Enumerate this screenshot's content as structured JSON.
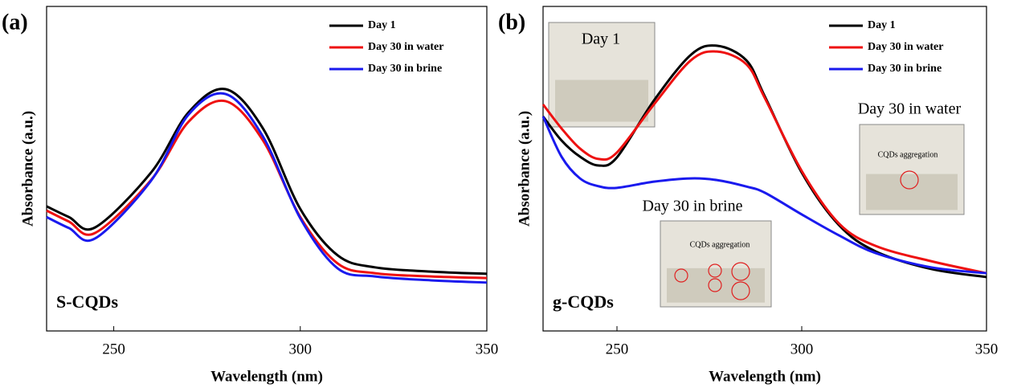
{
  "chart_data": [
    {
      "type": "line",
      "panel_label": "(a)",
      "sample": "S-CQDs",
      "xlabel": "Wavelength (nm)",
      "ylabel": "Absorbance (a.u.)",
      "xlim": [
        232,
        350
      ],
      "xticks": [
        250,
        300,
        350
      ],
      "ylim": [
        0,
        1
      ],
      "x": [
        232,
        238,
        245,
        260,
        270,
        280,
        290,
        300,
        310,
        320,
        335,
        350
      ],
      "series": [
        {
          "name": "Day 1",
          "color": "#000000",
          "values": [
            0.384,
            0.351,
            0.319,
            0.488,
            0.673,
            0.745,
            0.624,
            0.376,
            0.233,
            0.196,
            0.183,
            0.176
          ]
        },
        {
          "name": "Day 30 in water",
          "color": "#ee1111",
          "values": [
            0.371,
            0.337,
            0.302,
            0.465,
            0.644,
            0.708,
            0.587,
            0.351,
            0.208,
            0.178,
            0.168,
            0.163
          ]
        },
        {
          "name": "Day 30 in brine",
          "color": "#1a1aee",
          "values": [
            0.351,
            0.317,
            0.285,
            0.463,
            0.666,
            0.73,
            0.599,
            0.347,
            0.193,
            0.168,
            0.156,
            0.149
          ]
        }
      ]
    },
    {
      "type": "line",
      "panel_label": "(b)",
      "sample": "g-CQDs",
      "xlabel": "Wavelength (nm)",
      "ylabel": "Absorbance (a.u.)",
      "xlim": [
        230,
        350
      ],
      "xticks": [
        250,
        300,
        350
      ],
      "ylim": [
        0,
        1
      ],
      "x": [
        230,
        235,
        240,
        245,
        250,
        260,
        270,
        277,
        285,
        290,
        300,
        310,
        320,
        335,
        350
      ],
      "series": [
        {
          "name": "Day 1",
          "color": "#000000",
          "values": [
            0.661,
            0.587,
            0.537,
            0.51,
            0.535,
            0.71,
            0.851,
            0.879,
            0.834,
            0.723,
            0.488,
            0.327,
            0.245,
            0.191,
            0.166
          ]
        },
        {
          "name": "Day 30 in water",
          "color": "#ee1111",
          "values": [
            0.698,
            0.624,
            0.562,
            0.53,
            0.55,
            0.698,
            0.834,
            0.861,
            0.822,
            0.718,
            0.493,
            0.332,
            0.262,
            0.215,
            0.178
          ]
        },
        {
          "name": "Day 30 in brine",
          "color": "#1a1aee",
          "values": [
            0.661,
            0.537,
            0.47,
            0.446,
            0.441,
            0.46,
            0.47,
            0.465,
            0.445,
            0.426,
            0.359,
            0.295,
            0.24,
            0.196,
            0.178
          ]
        }
      ],
      "annotations": [
        "Day 1",
        "Day 30 in water",
        "Day 30 in brine",
        "CQDs aggregation",
        "CQDs aggregation"
      ]
    }
  ]
}
